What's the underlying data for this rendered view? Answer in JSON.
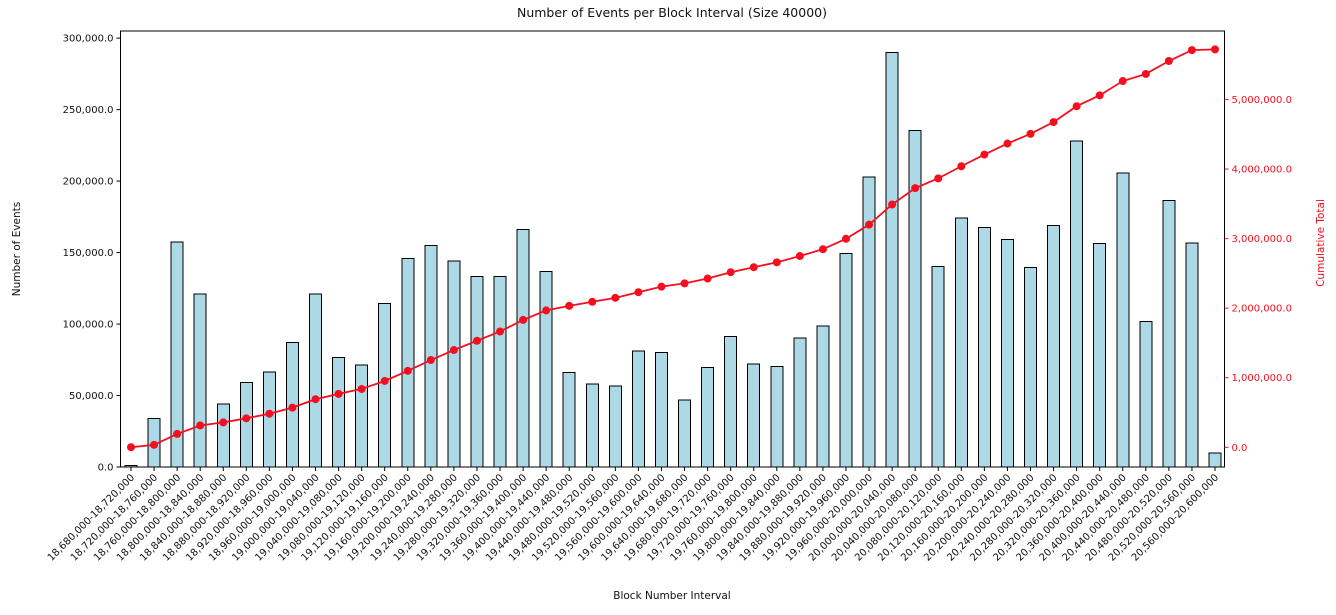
{
  "figure": {
    "title": "Number of Events per Block Interval (Size 40000)",
    "xlabel": "Block Number Interval",
    "ylabel_left": "Number of Events",
    "ylabel_right": "Cumulative Total"
  },
  "chart_data": {
    "type": "bar",
    "title": "Number of Events per Block Interval (Size 40000)",
    "xlabel": "Block Number Interval",
    "ylabel": "Number of Events",
    "ylabel_secondary": "Cumulative Total",
    "grid": false,
    "legend": "none",
    "bar_color": "#add8e6",
    "bar_edge_color": "#000000",
    "line_color": "#f50f1e",
    "categories": [
      "18,680,000-18,720,000",
      "18,720,000-18,760,000",
      "18,760,000-18,800,000",
      "18,800,000-18,840,000",
      "18,840,000-18,880,000",
      "18,880,000-18,920,000",
      "18,920,000-18,960,000",
      "18,960,000-19,000,000",
      "19,000,000-19,040,000",
      "19,040,000-19,080,000",
      "19,080,000-19,120,000",
      "19,120,000-19,160,000",
      "19,160,000-19,200,000",
      "19,200,000-19,240,000",
      "19,240,000-19,280,000",
      "19,280,000-19,320,000",
      "19,320,000-19,360,000",
      "19,360,000-19,400,000",
      "19,400,000-19,440,000",
      "19,440,000-19,480,000",
      "19,480,000-19,520,000",
      "19,520,000-19,560,000",
      "19,560,000-19,600,000",
      "19,600,000-19,640,000",
      "19,640,000-19,680,000",
      "19,680,000-19,720,000",
      "19,720,000-19,760,000",
      "19,760,000-19,800,000",
      "19,800,000-19,840,000",
      "19,840,000-19,880,000",
      "19,880,000-19,920,000",
      "19,920,000-19,960,000",
      "19,960,000-20,000,000",
      "20,000,000-20,040,000",
      "20,040,000-20,080,000",
      "20,080,000-20,120,000",
      "20,120,000-20,160,000",
      "20,160,000-20,200,000",
      "20,200,000-20,240,000",
      "20,240,000-20,280,000",
      "20,280,000-20,320,000",
      "20,320,000-20,360,000",
      "20,360,000-20,400,000",
      "20,400,000-20,440,000",
      "20,440,000-20,480,000",
      "20,480,000-20,520,000",
      "20,520,000-20,560,000",
      "20,560,000-20,600,000"
    ],
    "values": [
      1200,
      34000,
      157500,
      121000,
      44000,
      59000,
      66300,
      87000,
      121000,
      76500,
      71500,
      114500,
      146000,
      155000,
      144000,
      133300,
      133100,
      166100,
      136700,
      66100,
      58000,
      56700,
      81000,
      80000,
      46900,
      69500,
      91200,
      71900,
      70200,
      90100,
      98700,
      149500,
      203000,
      290000,
      235500,
      140200,
      174100,
      167500,
      159000,
      139600,
      168900,
      228200,
      156200,
      205600,
      101700,
      186400,
      156800,
      9800
    ],
    "line_series": {
      "name": "Cumulative Total",
      "derived_from": "running sum of values",
      "marker": "circle"
    },
    "left_axis": {
      "ylim": [
        0,
        305000
      ],
      "tick_values": [
        0,
        50000,
        100000,
        150000,
        200000,
        250000,
        300000
      ],
      "tick_labels": [
        "0.0",
        "50,000.0",
        "100,000.0",
        "150,000.0",
        "200,000.0",
        "250,000.0",
        "300,000.0"
      ],
      "color": "#111111"
    },
    "right_axis": {
      "ylim": [
        -283200,
        5984700
      ],
      "tick_values": [
        0,
        1000000,
        2000000,
        3000000,
        4000000,
        5000000
      ],
      "tick_labels": [
        "0.0",
        "1,000,000.0",
        "2,000,000.0",
        "3,000,000.0",
        "4,000,000.0",
        "5,000,000.0"
      ],
      "color": "#f50f1e"
    }
  }
}
